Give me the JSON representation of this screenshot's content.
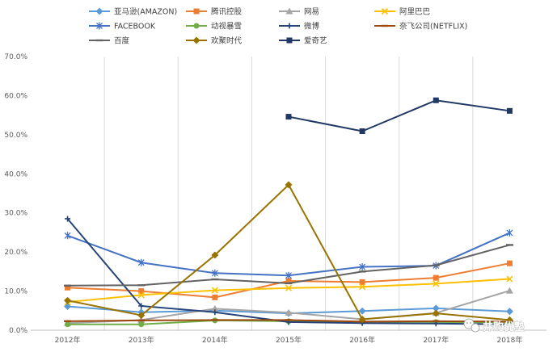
{
  "chart_data": {
    "type": "line",
    "title": "",
    "xlabel": "",
    "ylabel": "",
    "categories": [
      "2012年",
      "2013年",
      "2014年",
      "2015年",
      "2016年",
      "2017年",
      "2018年"
    ],
    "ylim": [
      0,
      70
    ],
    "yticks": [
      0,
      10,
      20,
      30,
      40,
      50,
      60,
      70
    ],
    "ytick_labels": [
      "0.0%",
      "10.0%",
      "20.0%",
      "30.0%",
      "40.0%",
      "50.0%",
      "60.0%",
      "70.0%"
    ],
    "grid": "vertical",
    "legend_position": "top",
    "series": [
      {
        "name": "亚马逊(AMAZON)",
        "color": "#5B9BD5",
        "marker": "diamond",
        "values": [
          6.1,
          4.6,
          5.0,
          4.3,
          4.9,
          5.6,
          4.8
        ]
      },
      {
        "name": "腾讯控股",
        "color": "#ED7D31",
        "marker": "square",
        "values": [
          10.9,
          10.0,
          8.4,
          12.6,
          12.3,
          13.4,
          17.1
        ]
      },
      {
        "name": "网易",
        "color": "#A5A5A5",
        "marker": "triangle",
        "values": [
          1.8,
          2.6,
          5.5,
          4.5,
          2.8,
          4.4,
          10.1
        ]
      },
      {
        "name": "阿里巴巴",
        "color": "#FFC000",
        "marker": "x",
        "values": [
          7.2,
          9.0,
          10.2,
          10.8,
          11.1,
          11.9,
          13.1
        ]
      },
      {
        "name": "FACEBOOK",
        "color": "#4472C4",
        "marker": "star",
        "values": [
          24.2,
          17.3,
          14.6,
          14.0,
          16.2,
          16.5,
          24.9
        ]
      },
      {
        "name": "动视暴雪",
        "color": "#70AD47",
        "marker": "circle",
        "values": [
          1.5,
          1.5,
          2.5,
          2.3,
          2.2,
          2.1,
          2.0
        ]
      },
      {
        "name": "微博",
        "color": "#264478",
        "marker": "plus",
        "values": [
          28.5,
          6.2,
          4.6,
          2.1,
          1.8,
          1.7,
          1.5
        ]
      },
      {
        "name": "奈飞公司(NETFLIX)",
        "color": "#9E480E",
        "marker": "dash",
        "values": [
          2.3,
          2.5,
          2.6,
          2.6,
          2.2,
          2.3,
          2.2
        ]
      },
      {
        "name": "百度",
        "color": "#636363",
        "marker": "dash",
        "values": [
          11.4,
          11.5,
          13.0,
          12.0,
          15.0,
          16.6,
          21.8
        ]
      },
      {
        "name": "欢聚时代",
        "color": "#997300",
        "marker": "diamond",
        "values": [
          7.6,
          3.8,
          19.2,
          37.2,
          2.8,
          4.3,
          2.6
        ]
      },
      {
        "name": "爱奇艺",
        "color": "#1F3864",
        "marker": "square",
        "values": [
          null,
          null,
          null,
          54.6,
          50.9,
          58.8,
          56.1
        ]
      }
    ]
  },
  "watermark": {
    "text": "井购优塾",
    "icon": "wechat-icon"
  }
}
